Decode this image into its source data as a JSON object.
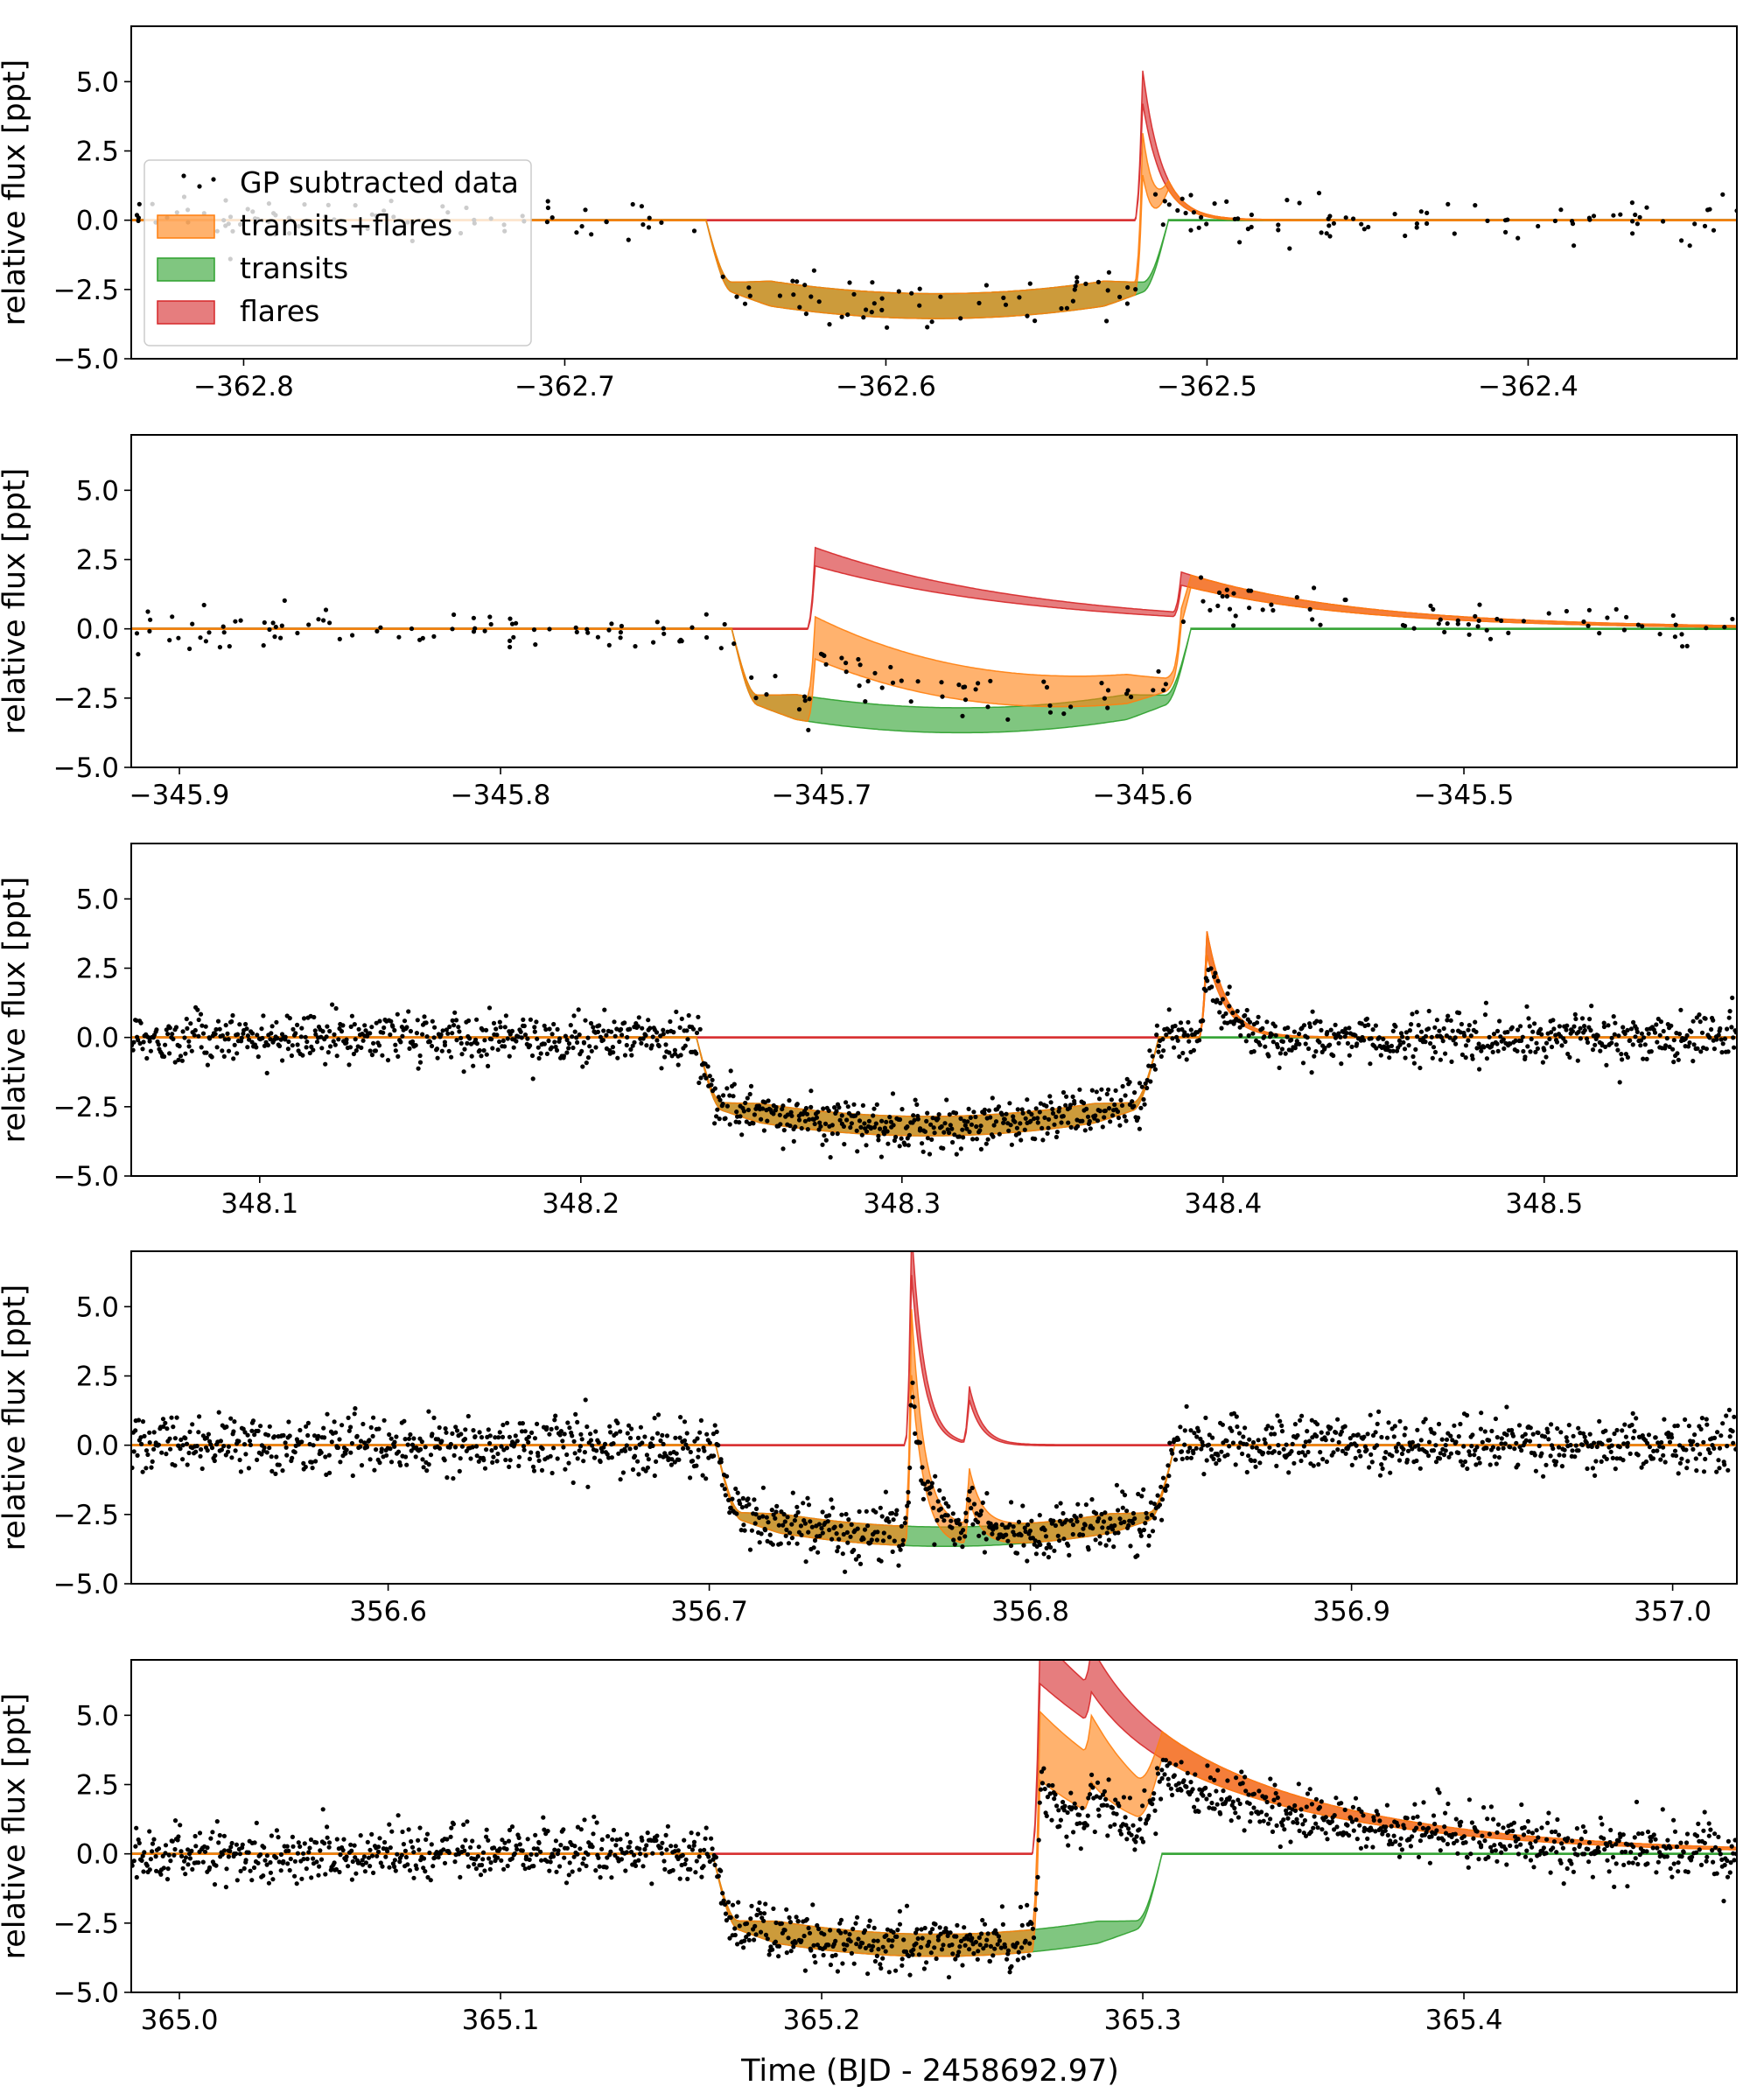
{
  "figure": {
    "xlabel": "Time (BJD - 2458692.97)",
    "ylabel": "relative flux [ppt]"
  },
  "legend": {
    "location": "upper-left of first panel",
    "entries": [
      {
        "label": "GP subtracted data",
        "kind": "markers",
        "color": "#000000"
      },
      {
        "label": "transits+flares",
        "kind": "band",
        "color": "#ff7f0e"
      },
      {
        "label": "transits",
        "kind": "band",
        "color": "#2ca02c"
      },
      {
        "label": "flares",
        "kind": "band",
        "color": "#d62728"
      }
    ]
  },
  "colors": {
    "data": "#000000",
    "transits_flares": "#ff7f0e",
    "transits": "#2ca02c",
    "flares": "#d62728"
  },
  "chart_data": [
    {
      "type": "line",
      "panel": 1,
      "xlim": [
        -362.835,
        -362.335
      ],
      "ylim": [
        -5,
        7
      ],
      "xticks": [
        -362.8,
        -362.7,
        -362.6,
        -362.5,
        -362.4
      ],
      "xtick_labels": [
        "−362.8",
        "−362.7",
        "−362.6",
        "−362.5",
        "−362.4"
      ],
      "yticks": [
        -5,
        -2.5,
        0,
        2.5,
        5
      ],
      "ytick_labels": [
        "−5.0",
        "−2.5",
        "0.0",
        "2.5",
        "5.0"
      ],
      "transit": {
        "ingress": -362.656,
        "egress": -362.512,
        "depth": -3.1,
        "ramp": 0.008,
        "band_halfwidth": 0.45
      },
      "flares": [
        {
          "t": -362.52,
          "amp": 4.8,
          "decay": 0.006
        }
      ],
      "n_points": 240,
      "noise": 0.4
    },
    {
      "type": "line",
      "panel": 2,
      "xlim": [
        -345.915,
        -345.415
      ],
      "ylim": [
        -5,
        7
      ],
      "xticks": [
        -345.9,
        -345.8,
        -345.7,
        -345.6,
        -345.5
      ],
      "xtick_labels": [
        "−345.9",
        "−345.8",
        "−345.7",
        "−345.6",
        "−345.5"
      ],
      "yticks": [
        -5,
        -2.5,
        0,
        2.5,
        5
      ],
      "ytick_labels": [
        "−5.0",
        "−2.5",
        "0.0",
        "2.5",
        "5.0"
      ],
      "transit": {
        "ingress": -345.728,
        "egress": -345.585,
        "depth": -3.3,
        "ramp": 0.008,
        "band_halfwidth": 0.45
      },
      "flares": [
        {
          "t": -345.702,
          "amp": 2.6,
          "decay": 0.07
        },
        {
          "t": -345.588,
          "amp": 1.3,
          "decay": 0.05
        }
      ],
      "n_points": 230,
      "noise": 0.4
    },
    {
      "type": "line",
      "panel": 3,
      "xlim": [
        348.06,
        348.56
      ],
      "ylim": [
        -5,
        7
      ],
      "xticks": [
        348.1,
        348.2,
        348.3,
        348.4,
        348.5
      ],
      "xtick_labels": [
        "348.1",
        "348.2",
        "348.3",
        "348.4",
        "348.5"
      ],
      "yticks": [
        -5,
        -2.5,
        0,
        2.5,
        5
      ],
      "ytick_labels": [
        "−5.0",
        "−2.5",
        "0.0",
        "2.5",
        "5.0"
      ],
      "transit": {
        "ingress": 348.236,
        "egress": 348.38,
        "depth": -3.2,
        "ramp": 0.008,
        "band_halfwidth": 0.35
      },
      "flares": [
        {
          "t": 348.395,
          "amp": 3.4,
          "decay": 0.006
        }
      ],
      "n_points": 1500,
      "noise": 0.45
    },
    {
      "type": "line",
      "panel": 4,
      "xlim": [
        356.52,
        357.02
      ],
      "ylim": [
        -5,
        7
      ],
      "xticks": [
        356.6,
        356.7,
        356.8,
        356.9,
        357.0
      ],
      "xtick_labels": [
        "356.6",
        "356.7",
        "356.8",
        "356.9",
        "357.0"
      ],
      "yticks": [
        -5,
        -2.5,
        0,
        2.5,
        5
      ],
      "ytick_labels": [
        "−5.0",
        "−2.5",
        "0.0",
        "2.5",
        "5.0"
      ],
      "transit": {
        "ingress": 356.702,
        "egress": 356.845,
        "depth": -3.3,
        "ramp": 0.008,
        "band_halfwidth": 0.35
      },
      "flares": [
        {
          "t": 356.763,
          "amp": 7.0,
          "decay": 0.004
        },
        {
          "t": 356.781,
          "amp": 1.8,
          "decay": 0.004
        }
      ],
      "n_points": 1500,
      "noise": 0.5
    },
    {
      "type": "line",
      "panel": 5,
      "xlim": [
        364.985,
        365.485
      ],
      "ylim": [
        -5,
        7
      ],
      "xticks": [
        365.0,
        365.1,
        365.2,
        365.3,
        365.4
      ],
      "xtick_labels": [
        "365.0",
        "365.1",
        "365.2",
        "365.3",
        "365.4"
      ],
      "yticks": [
        -5,
        -2.5,
        0,
        2.5,
        5
      ],
      "ytick_labels": [
        "−5.0",
        "−2.5",
        "0.0",
        "2.5",
        "5.0"
      ],
      "transit": {
        "ingress": 365.166,
        "egress": 365.306,
        "depth": -3.3,
        "ramp": 0.008,
        "band_halfwidth": 0.4
      },
      "flares": [
        {
          "t": 365.268,
          "amp": 7.0,
          "decay": 0.06
        },
        {
          "t": 365.284,
          "amp": 1.3,
          "decay": 0.012
        }
      ],
      "n_points": 1500,
      "noise": 0.5
    }
  ]
}
